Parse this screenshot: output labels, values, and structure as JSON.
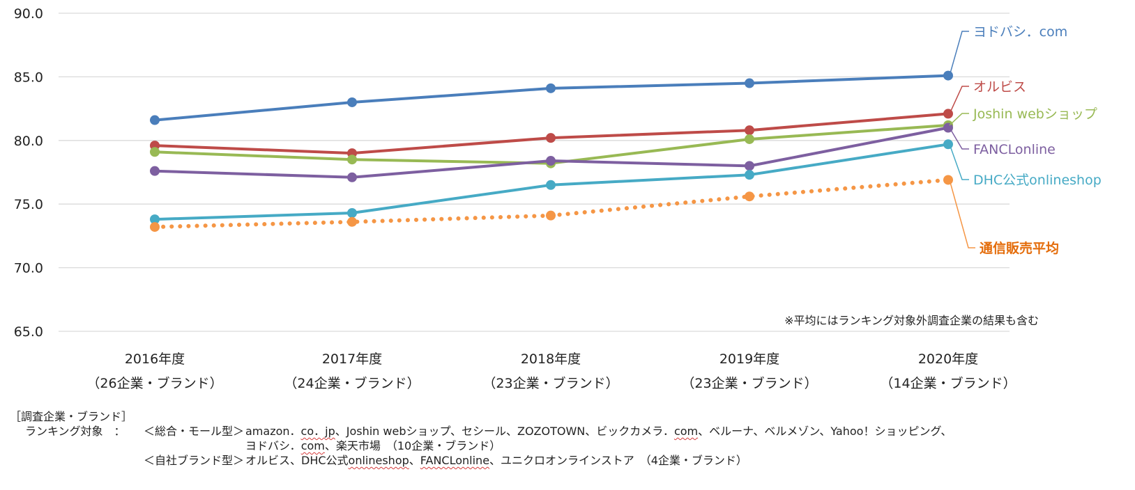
{
  "chart_data": {
    "type": "line",
    "categories": [
      "2016年度",
      "2017年度",
      "2018年度",
      "2019年度",
      "2020年度"
    ],
    "category_sublabels": [
      "（26企業・ブランド）",
      "（24企業・ブランド）",
      "（23企業・ブランド）",
      "（23企業・ブランド）",
      "（14企業・ブランド）"
    ],
    "ylim": [
      65.0,
      90.0
    ],
    "yticks": [
      "90.0",
      "85.0",
      "80.0",
      "75.0",
      "70.0",
      "65.0"
    ],
    "grid": true,
    "legend": "labels at right end of lines",
    "series": [
      {
        "name": "ヨドバシ．com",
        "color": "#4a7ebb",
        "style": "solid",
        "bold": false,
        "values": [
          81.6,
          83.0,
          84.1,
          84.5,
          85.1
        ]
      },
      {
        "name": "オルビス",
        "color": "#be4b48",
        "style": "solid",
        "bold": false,
        "values": [
          79.6,
          79.0,
          80.2,
          80.8,
          82.1
        ]
      },
      {
        "name": "Joshin webショップ",
        "color": "#98b954",
        "style": "solid",
        "bold": false,
        "values": [
          79.1,
          78.5,
          78.2,
          80.1,
          81.2
        ]
      },
      {
        "name": "FANCLonline",
        "color": "#7d5fa0",
        "style": "solid",
        "bold": false,
        "values": [
          77.6,
          77.1,
          78.4,
          78.0,
          81.0
        ]
      },
      {
        "name": "DHC公式onlineshop",
        "color": "#46aac5",
        "style": "solid",
        "bold": false,
        "values": [
          73.8,
          74.3,
          76.5,
          77.3,
          79.7
        ]
      },
      {
        "name": "通信販売平均",
        "color": "#f59645",
        "label_color": "#e46c0a",
        "style": "dotted",
        "bold": true,
        "values": [
          73.2,
          73.6,
          74.1,
          75.6,
          76.9
        ]
      }
    ],
    "annotation": "※平均にはランキング対象外調査企業の結果も含む"
  },
  "footer": {
    "heading": "［調査企業・ブランド］",
    "rank_label": "ランキング対象　：",
    "group1_label": "＜総合・モール型＞",
    "group1_line1_parts": [
      {
        "text": "amazon．",
        "squig": false
      },
      {
        "text": "co．",
        "squig": true
      },
      {
        "text": "jp",
        "squig": true
      },
      {
        "text": "、Joshin webショップ、セシール、ZOZOTOWN、ビックカメラ．",
        "squig": false
      },
      {
        "text": "com",
        "squig": true
      },
      {
        "text": "、ベルーナ、ベルメゾン、Yahoo！ショッピング、",
        "squig": false
      }
    ],
    "group1_line2_parts": [
      {
        "text": "ヨドバシ．",
        "squig": false
      },
      {
        "text": "com",
        "squig": true
      },
      {
        "text": "、楽天市場　（10企業・ブランド）",
        "squig": false
      }
    ],
    "group2_label": "＜自社ブランド型＞",
    "group2_parts": [
      {
        "text": "オルビス、DHC公式",
        "squig": false
      },
      {
        "text": "onlineshop",
        "squig": true
      },
      {
        "text": "、",
        "squig": false
      },
      {
        "text": "FANCLonline",
        "squig": true
      },
      {
        "text": "、ユニクロオンラインストア　（4企業・ブランド）",
        "squig": false
      }
    ]
  }
}
